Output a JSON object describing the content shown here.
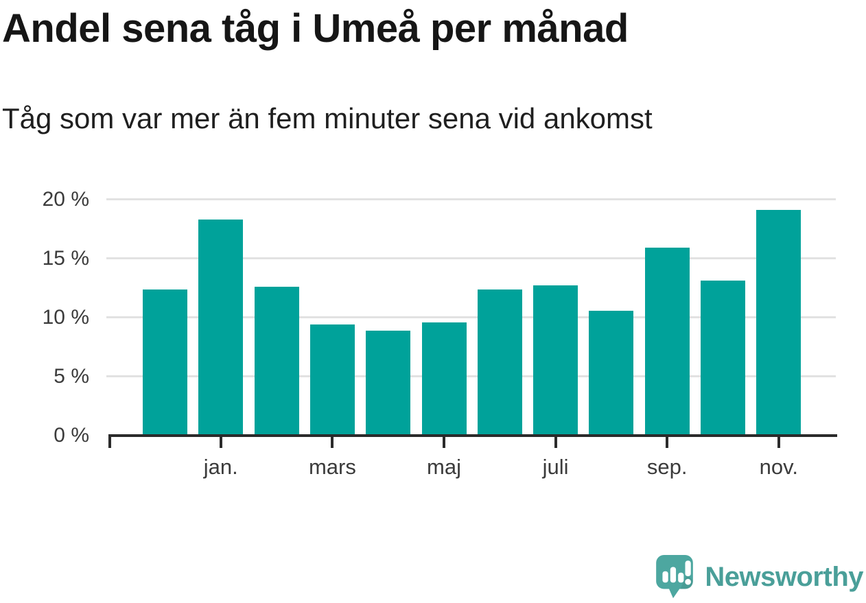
{
  "header": {
    "title": "Andel sena tåg i Umeå per månad",
    "subtitle": "Tåg som var mer än fem minuter sena vid ankomst"
  },
  "chart_data": {
    "type": "bar",
    "title": "Andel sena tåg i Umeå per månad",
    "subtitle": "Tåg som var mer än fem minuter sena vid ankomst",
    "unit": "%",
    "values": [
      12.4,
      18.3,
      12.6,
      9.4,
      8.9,
      9.6,
      12.4,
      12.7,
      10.6,
      15.9,
      13.1,
      19.1
    ],
    "x_tick_labels": [
      "jan.",
      "mars",
      "maj",
      "juli",
      "sep.",
      "nov."
    ],
    "x_tick_bar_indices": [
      1,
      3,
      5,
      7,
      9,
      11
    ],
    "y_tick_labels": [
      "0 %",
      "5 %",
      "10 %",
      "15 %",
      "20 %"
    ],
    "y_tick_values": [
      0,
      5,
      10,
      15,
      20
    ],
    "ylim": [
      0,
      21.2
    ],
    "grid": "horizontal",
    "legend": "none",
    "bar_color": "#00a29a",
    "axis_color": "#2b2b2b",
    "gridline_color": "#e2e2e2",
    "tick_label_color": "#3b3b3b"
  },
  "footer": {
    "brand": "Newsworthy",
    "brand_color": "#4a9f99",
    "icon_color": "#4da7a0",
    "icon_name": "newsworthy-speech-bubble-barchart-icon"
  }
}
